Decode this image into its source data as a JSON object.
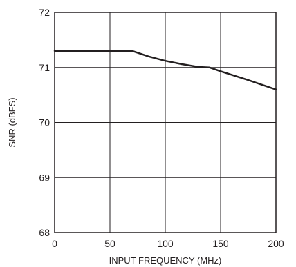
{
  "chart_data": {
    "type": "line",
    "title": "",
    "xlabel": "INPUT FREQUENCY (MHz)",
    "ylabel": "SNR (dBFS)",
    "xlim": [
      0,
      200
    ],
    "ylim": [
      68,
      72
    ],
    "xticks": [
      0,
      50,
      100,
      150,
      200
    ],
    "yticks": [
      68,
      69,
      70,
      71,
      72
    ],
    "grid": true,
    "line_color": "#231f20",
    "series": [
      {
        "x": [
          0,
          70,
          85,
          100,
          115,
          130,
          140,
          150,
          175,
          200
        ],
        "y": [
          71.3,
          71.3,
          71.2,
          71.12,
          71.06,
          71.01,
          71.0,
          70.93,
          70.77,
          70.6
        ]
      }
    ]
  }
}
